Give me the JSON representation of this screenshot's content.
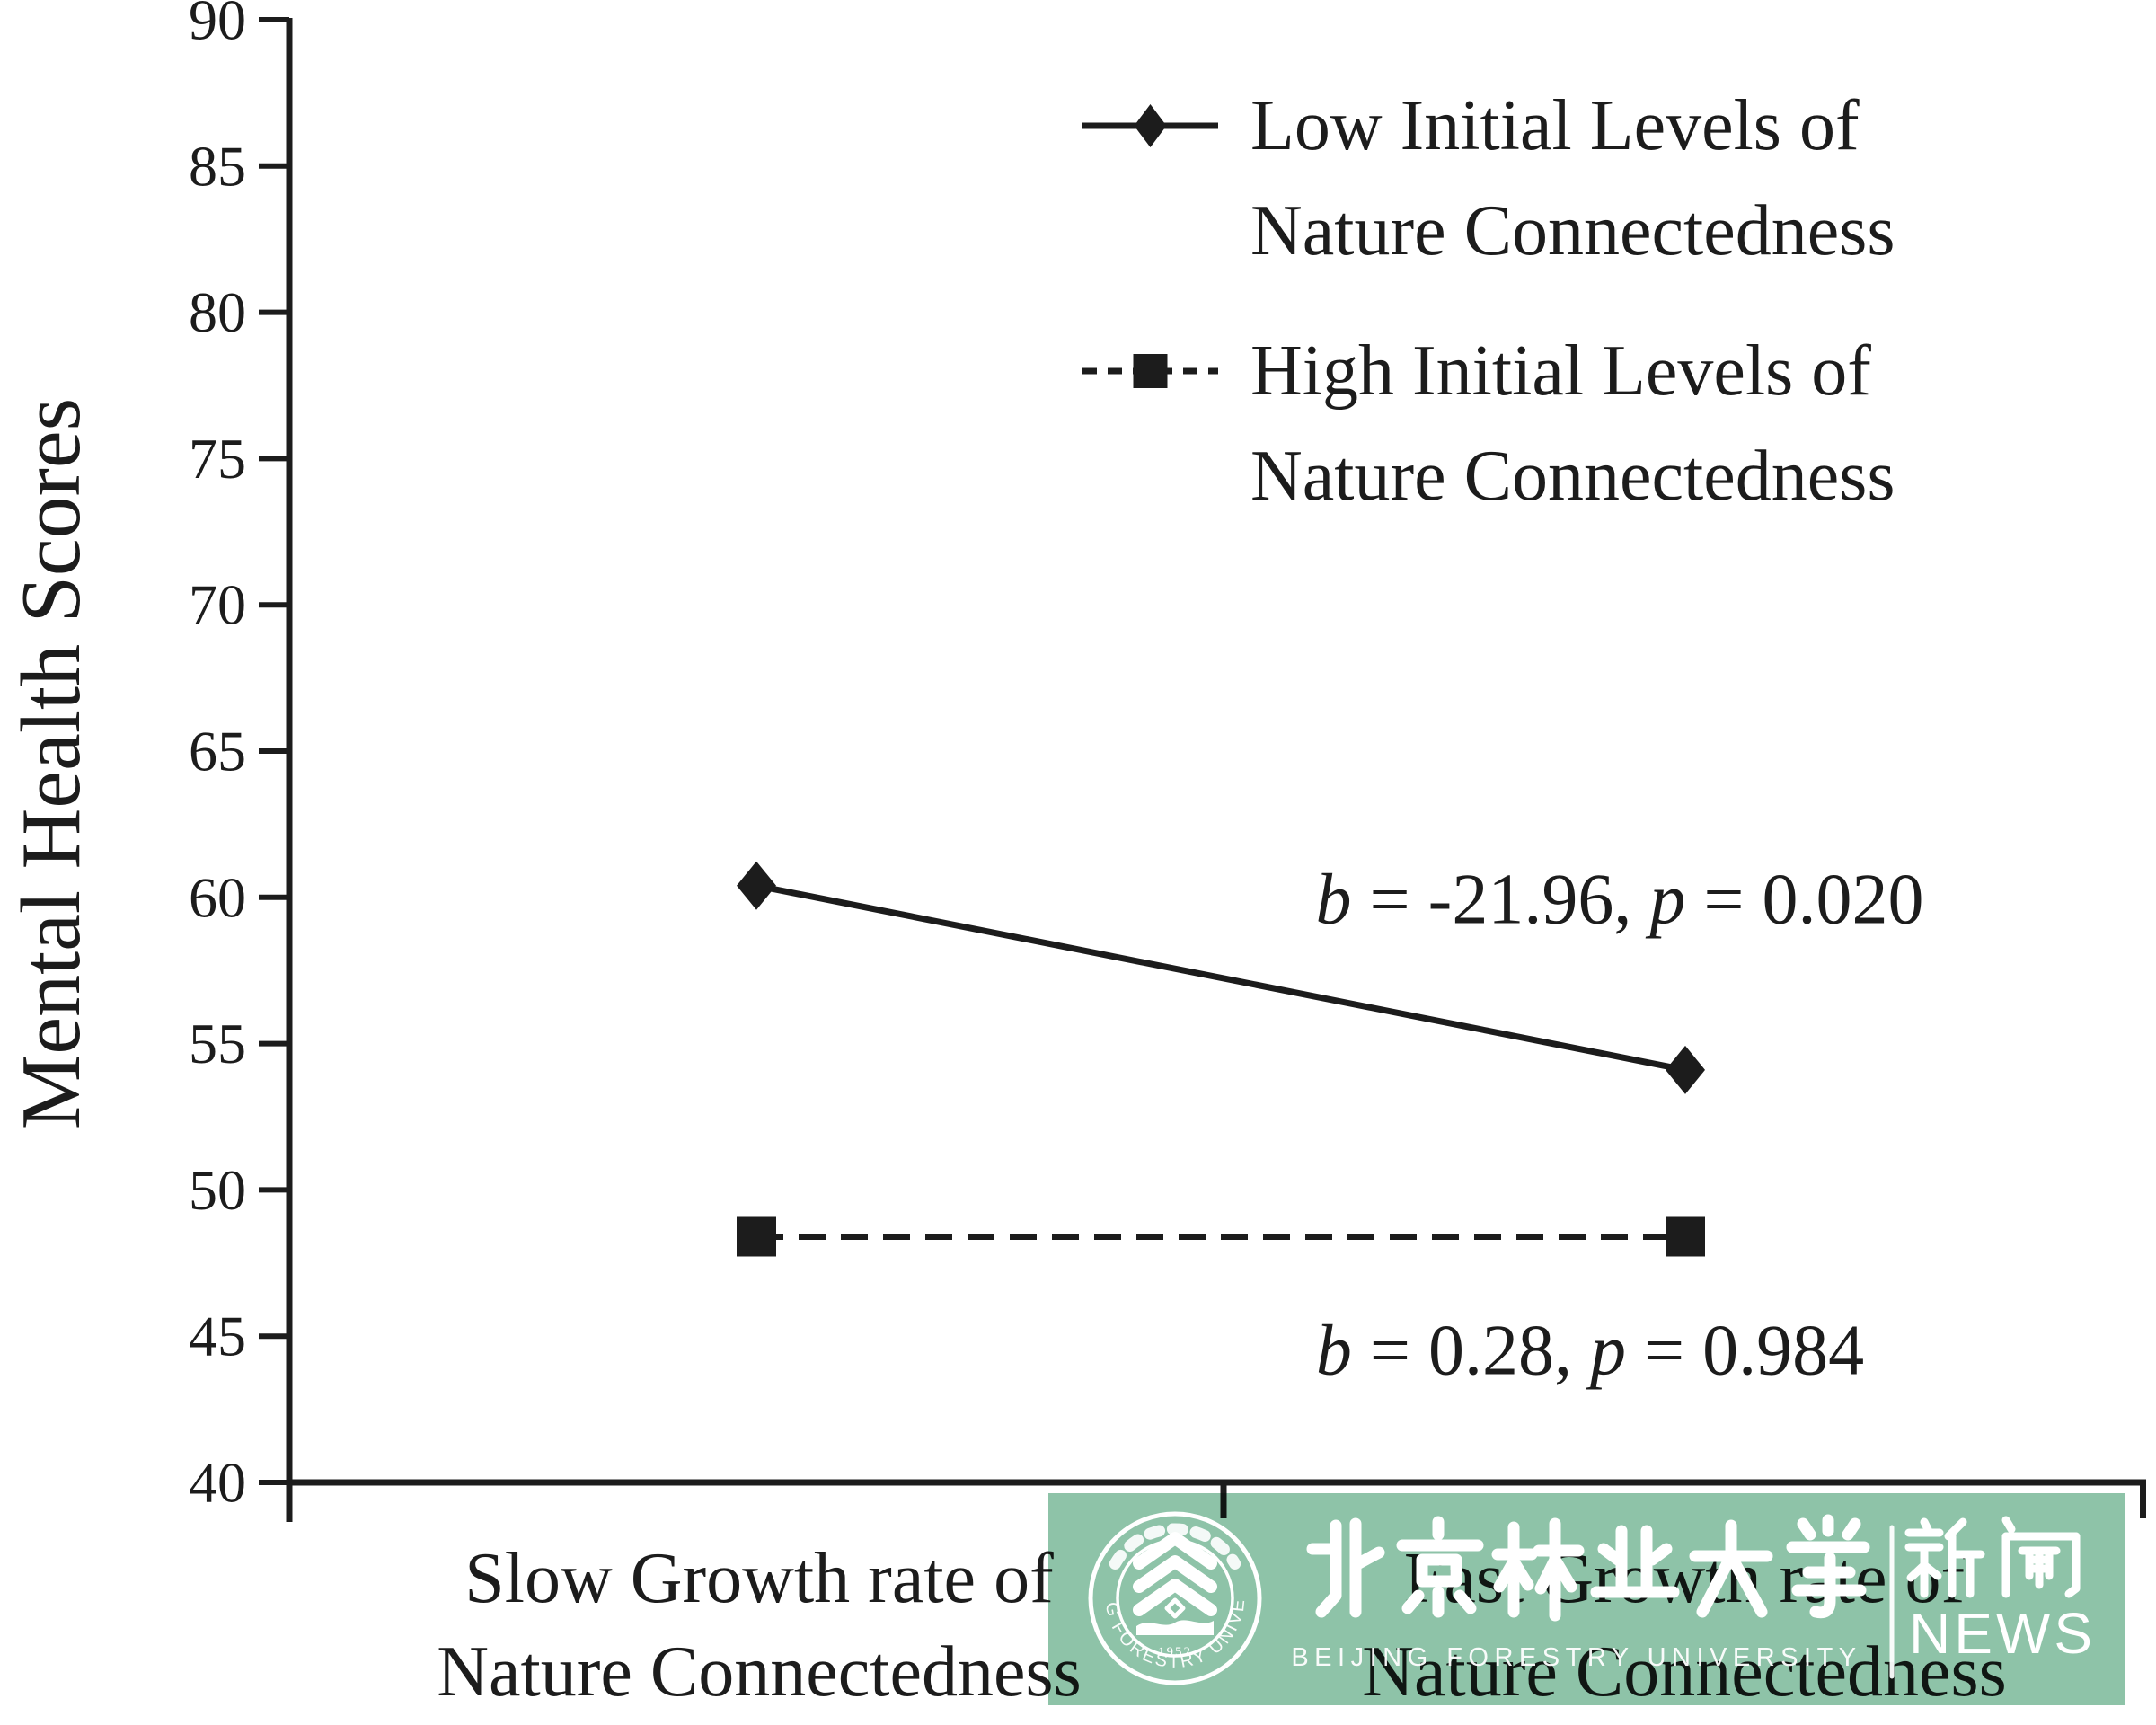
{
  "figure": {
    "background": "#ffffff",
    "ink_color": "#1c1c1c"
  },
  "chart_data": {
    "type": "line",
    "title": "",
    "xlabel": "",
    "ylabel": "Mental Health Scores",
    "ylim": [
      40,
      90
    ],
    "y_ticks": [
      40,
      45,
      50,
      55,
      60,
      65,
      70,
      75,
      80,
      85,
      90
    ],
    "grid": false,
    "legend_position": "upper right",
    "categories": [
      "Slow Growth rate of Nature Connectedness",
      "Fast Growth rate of Nature Connectedness"
    ],
    "series": [
      {
        "name": "Low Initial Levels of Nature Connectedness",
        "values": [
          60.4,
          54.1
        ],
        "line_style": "solid",
        "marker": "diamond",
        "color": "#1c1c1c"
      },
      {
        "name": "High Initial Levels of Nature Connectedness",
        "values": [
          48.4,
          48.4
        ],
        "line_style": "dashed",
        "marker": "square",
        "color": "#1c1c1c"
      }
    ],
    "annotations": [
      {
        "text": "b = -21.96, p = 0.020",
        "series": "Low Initial Levels of Nature Connectedness"
      },
      {
        "text": "b = 0.28, p = 0.984",
        "series": "High Initial Levels of Nature Connectedness"
      }
    ]
  },
  "y_axis": {
    "title": "Mental Health Scores"
  },
  "x_axis": {
    "categories": [
      {
        "line1": "Slow Growth rate of",
        "line2": "Nature Connectedness"
      },
      {
        "line1": "Fast Growth rate of",
        "line2": "Nature Connectedness"
      }
    ]
  },
  "legend": {
    "entries": [
      {
        "line1": "Low Initial Levels of",
        "line2": "Nature Connectedness",
        "marker": "diamond",
        "line_style": "solid"
      },
      {
        "line1": "High Initial Levels of",
        "line2": "Nature Connectedness",
        "marker": "square",
        "line_style": "dashed"
      }
    ]
  },
  "annotations": {
    "low": {
      "var1": "b",
      "seg1": " = -21.96, ",
      "var2": "p",
      "seg2": " = 0.020"
    },
    "high": {
      "var1": "b",
      "seg1": " = 0.28, ",
      "var2": "p",
      "seg2": " = 0.984"
    }
  },
  "watermark": {
    "banner_color": "#8ec3a8",
    "text_color": "#ffffff",
    "seal": {
      "ring_text": "BEIJING FORESTRY UNIVERSITY",
      "year": "1952"
    },
    "university_name_zh": "北京林业大学",
    "university_name_en": "BEIJING FORESTRY UNIVERSITY",
    "news_zh": "新闻",
    "news_en": "NEWS"
  }
}
